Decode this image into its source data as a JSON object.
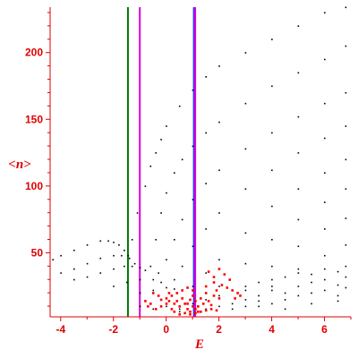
{
  "chart_data": {
    "type": "scatter",
    "xlabel": "E",
    "ylabel": "<n>",
    "xlim": [
      -4.4,
      7.0
    ],
    "ylim": [
      2,
      234
    ],
    "x_ticks": [
      -4,
      -2,
      0,
      2,
      4,
      6
    ],
    "y_ticks": [
      50,
      100,
      150,
      200
    ],
    "grid": false,
    "colors": {
      "axis": "#e00000",
      "ticks": "#e00000",
      "series_black": "#000000",
      "series_red": "#ff0000",
      "line_green": "#007700",
      "line_magenta": "#dd00dd",
      "line_blue": "#3333ff"
    },
    "vertical_lines": [
      {
        "x": -1.45,
        "color": "#007700"
      },
      {
        "x": -1.0,
        "color": "#dd00dd"
      },
      {
        "x": 1.05,
        "color": "#3333ff"
      },
      {
        "x": 1.1,
        "color": "#dd00dd"
      }
    ],
    "series": [
      {
        "color": "#000000",
        "style": "dots",
        "points": [
          [
            -1.3,
            60
          ],
          [
            -1.1,
            80
          ],
          [
            -0.8,
            100
          ],
          [
            -0.6,
            115
          ],
          [
            -0.4,
            125
          ],
          [
            -0.2,
            135
          ],
          [
            0,
            145
          ],
          [
            0.5,
            160
          ],
          [
            1,
            172
          ],
          [
            1.5,
            182
          ],
          [
            2,
            190
          ],
          [
            3,
            200
          ],
          [
            4,
            210
          ],
          [
            5,
            220
          ],
          [
            6,
            230
          ],
          [
            6.8,
            234
          ],
          [
            -0.6,
            40
          ],
          [
            -0.4,
            60
          ],
          [
            -0.2,
            80
          ],
          [
            0,
            95
          ],
          [
            0.3,
            110
          ],
          [
            0.6,
            120
          ],
          [
            1,
            130
          ],
          [
            1.5,
            140
          ],
          [
            2,
            148
          ],
          [
            3,
            162
          ],
          [
            4,
            175
          ],
          [
            5,
            185
          ],
          [
            6,
            195
          ],
          [
            6.8,
            205
          ],
          [
            -0.3,
            35
          ],
          [
            0,
            45
          ],
          [
            0.3,
            60
          ],
          [
            0.6,
            75
          ],
          [
            1,
            90
          ],
          [
            1.5,
            102
          ],
          [
            2,
            112
          ],
          [
            3,
            128
          ],
          [
            4,
            140
          ],
          [
            5,
            152
          ],
          [
            6,
            162
          ],
          [
            6.8,
            170
          ],
          [
            0.3,
            30
          ],
          [
            0.6,
            40
          ],
          [
            1,
            55
          ],
          [
            1.5,
            68
          ],
          [
            2,
            80
          ],
          [
            3,
            98
          ],
          [
            4,
            112
          ],
          [
            5,
            125
          ],
          [
            6,
            136
          ],
          [
            6.8,
            145
          ],
          [
            1,
            25
          ],
          [
            1.5,
            35
          ],
          [
            2,
            45
          ],
          [
            3,
            65
          ],
          [
            4,
            85
          ],
          [
            5,
            98
          ],
          [
            6,
            110
          ],
          [
            6.8,
            120
          ],
          [
            2,
            25
          ],
          [
            3,
            42
          ],
          [
            4,
            60
          ],
          [
            5,
            75
          ],
          [
            6,
            88
          ],
          [
            6.8,
            98
          ],
          [
            3,
            22
          ],
          [
            4,
            40
          ],
          [
            5,
            55
          ],
          [
            6,
            68
          ],
          [
            6.8,
            76
          ],
          [
            4,
            25
          ],
          [
            5,
            38
          ],
          [
            6,
            48
          ],
          [
            6.8,
            56
          ],
          [
            -4.3,
            45
          ],
          [
            -4,
            48
          ],
          [
            -3.5,
            52
          ],
          [
            -3,
            56
          ],
          [
            -2.5,
            59
          ],
          [
            -2.2,
            59
          ],
          [
            -2,
            58
          ],
          [
            -1.8,
            56
          ],
          [
            -1.6,
            52
          ],
          [
            -1.45,
            48
          ],
          [
            -4,
            35
          ],
          [
            -3.5,
            38
          ],
          [
            -3,
            42
          ],
          [
            -2.5,
            46
          ],
          [
            -2,
            48
          ],
          [
            -1.7,
            48
          ],
          [
            -1.4,
            46
          ],
          [
            -1.2,
            42
          ],
          [
            -3.5,
            30
          ],
          [
            -3,
            32
          ],
          [
            -2.5,
            35
          ],
          [
            -2,
            38
          ],
          [
            -1.6,
            40
          ],
          [
            -1.3,
            40
          ],
          [
            -1,
            39
          ],
          [
            -0.8,
            37
          ],
          [
            -2,
            25
          ],
          [
            -1.5,
            28
          ],
          [
            -1,
            30
          ],
          [
            -0.5,
            30
          ],
          [
            -0.2,
            28
          ],
          [
            -1,
            20
          ],
          [
            -0.5,
            22
          ],
          [
            0,
            24
          ],
          [
            0.3,
            23
          ],
          [
            0.5,
            8
          ],
          [
            1,
            12
          ],
          [
            1.5,
            15
          ],
          [
            2,
            18
          ],
          [
            2.5,
            22
          ],
          [
            3,
            25
          ],
          [
            3.5,
            28
          ],
          [
            4,
            30
          ],
          [
            4.5,
            32
          ],
          [
            5,
            35
          ],
          [
            5.5,
            34
          ],
          [
            6,
            38
          ],
          [
            6.5,
            36
          ],
          [
            6.8,
            40
          ],
          [
            3,
            15
          ],
          [
            3.5,
            18
          ],
          [
            4,
            22
          ],
          [
            4.5,
            20
          ],
          [
            5,
            25
          ],
          [
            5.5,
            28
          ],
          [
            6,
            30
          ],
          [
            6.5,
            26
          ],
          [
            6.8,
            32
          ],
          [
            2,
            10
          ],
          [
            2.5,
            12
          ],
          [
            3,
            10
          ],
          [
            3.5,
            14
          ],
          [
            4,
            12
          ],
          [
            4.5,
            15
          ],
          [
            5,
            18
          ],
          [
            5.5,
            20
          ],
          [
            6,
            22
          ],
          [
            6.5,
            18
          ],
          [
            6.8,
            24
          ],
          [
            -1,
            10
          ],
          [
            -0.5,
            8
          ],
          [
            0,
            10
          ],
          [
            0.5,
            6
          ],
          [
            1.5,
            8
          ],
          [
            2.5,
            8
          ],
          [
            3.5,
            10
          ],
          [
            4.5,
            8
          ],
          [
            5.5,
            12
          ],
          [
            6.5,
            14
          ]
        ]
      },
      {
        "color": "#ff0000",
        "style": "dots",
        "points": [
          [
            0.8,
            12
          ],
          [
            0.9,
            15
          ],
          [
            1,
            18
          ],
          [
            1.1,
            14
          ],
          [
            1.2,
            10
          ],
          [
            1.3,
            16
          ],
          [
            1.4,
            12
          ],
          [
            1.5,
            20
          ],
          [
            1.6,
            14
          ],
          [
            1.7,
            11
          ],
          [
            1.8,
            18
          ],
          [
            1.9,
            22
          ],
          [
            2,
            16
          ],
          [
            0.2,
            8
          ],
          [
            0.3,
            12
          ],
          [
            0.4,
            14
          ],
          [
            0.5,
            10
          ],
          [
            0.6,
            16
          ],
          [
            0.7,
            12
          ],
          [
            0.8,
            8
          ],
          [
            0.9,
            6
          ],
          [
            1,
            10
          ],
          [
            1.1,
            8
          ],
          [
            1.2,
            6
          ],
          [
            -0.5,
            20
          ],
          [
            -0.3,
            18
          ],
          [
            -0.2,
            15
          ],
          [
            0,
            16
          ],
          [
            0.1,
            20
          ],
          [
            0.2,
            18
          ],
          [
            0.4,
            20
          ],
          [
            0.6,
            22
          ],
          [
            0.8,
            24
          ],
          [
            1,
            22
          ],
          [
            1.5,
            25
          ],
          [
            1.8,
            28
          ],
          [
            2.1,
            26
          ],
          [
            2.4,
            30
          ],
          [
            2.2,
            34
          ],
          [
            2,
            38
          ],
          [
            1.8,
            32
          ],
          [
            1.6,
            36
          ],
          [
            2.5,
            22
          ],
          [
            2.7,
            20
          ],
          [
            2.8,
            18
          ],
          [
            2.3,
            24
          ],
          [
            2.6,
            16
          ],
          [
            -0.8,
            14
          ],
          [
            -0.6,
            12
          ],
          [
            -0.7,
            10
          ],
          [
            -0.4,
            8
          ],
          [
            -0.2,
            10
          ],
          [
            0,
            12
          ],
          [
            0.1,
            14
          ],
          [
            0.3,
            6
          ],
          [
            0.5,
            4
          ],
          [
            0.7,
            5
          ],
          [
            0.9,
            4
          ],
          [
            1.1,
            5
          ],
          [
            1.3,
            6
          ],
          [
            1.5,
            7
          ],
          [
            1.7,
            8
          ],
          [
            1.9,
            7
          ]
        ]
      }
    ]
  }
}
